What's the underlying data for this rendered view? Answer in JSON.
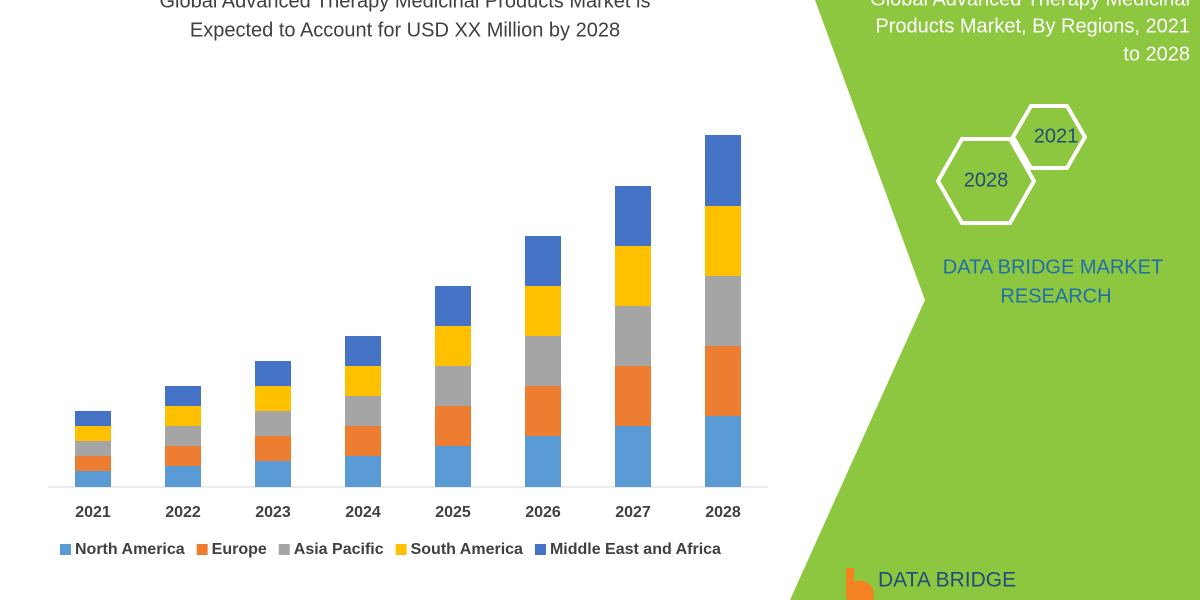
{
  "chart_data": {
    "type": "stacked-bar",
    "title": [
      "Global Advanced Therapy Medicinal Products Market is",
      "Expected to Account for USD XX Million by 2028"
    ],
    "categories": [
      "2021",
      "2022",
      "2023",
      "2024",
      "2025",
      "2026",
      "2027",
      "2028"
    ],
    "series": [
      {
        "name": "North America",
        "color": "#5b9bd5",
        "values": [
          16,
          21,
          26,
          31,
          41,
          51,
          61,
          71
        ]
      },
      {
        "name": "Europe",
        "color": "#ed7d31",
        "values": [
          15,
          20,
          25,
          30,
          40,
          50,
          60,
          70
        ]
      },
      {
        "name": "Asia Pacific",
        "color": "#a5a5a5",
        "values": [
          15,
          20,
          25,
          30,
          40,
          50,
          60,
          70
        ]
      },
      {
        "name": "South America",
        "color": "#ffc000",
        "values": [
          15,
          20,
          25,
          30,
          40,
          50,
          60,
          70
        ]
      },
      {
        "name": "Middle East and Africa",
        "color": "#4472c4",
        "values": [
          15,
          20,
          25,
          30,
          40,
          50,
          60,
          71
        ]
      }
    ],
    "legend": "bottom"
  },
  "panel": {
    "title": [
      "Global Advanced Therapy Medicinal",
      "Products Market, By Regions, 2021",
      "to 2028"
    ],
    "hexagons": [
      "2021",
      "2028"
    ],
    "brand": [
      "DATA BRIDGE MARKET",
      "RESEARCH"
    ],
    "logo": "DATA BRIDGE"
  }
}
